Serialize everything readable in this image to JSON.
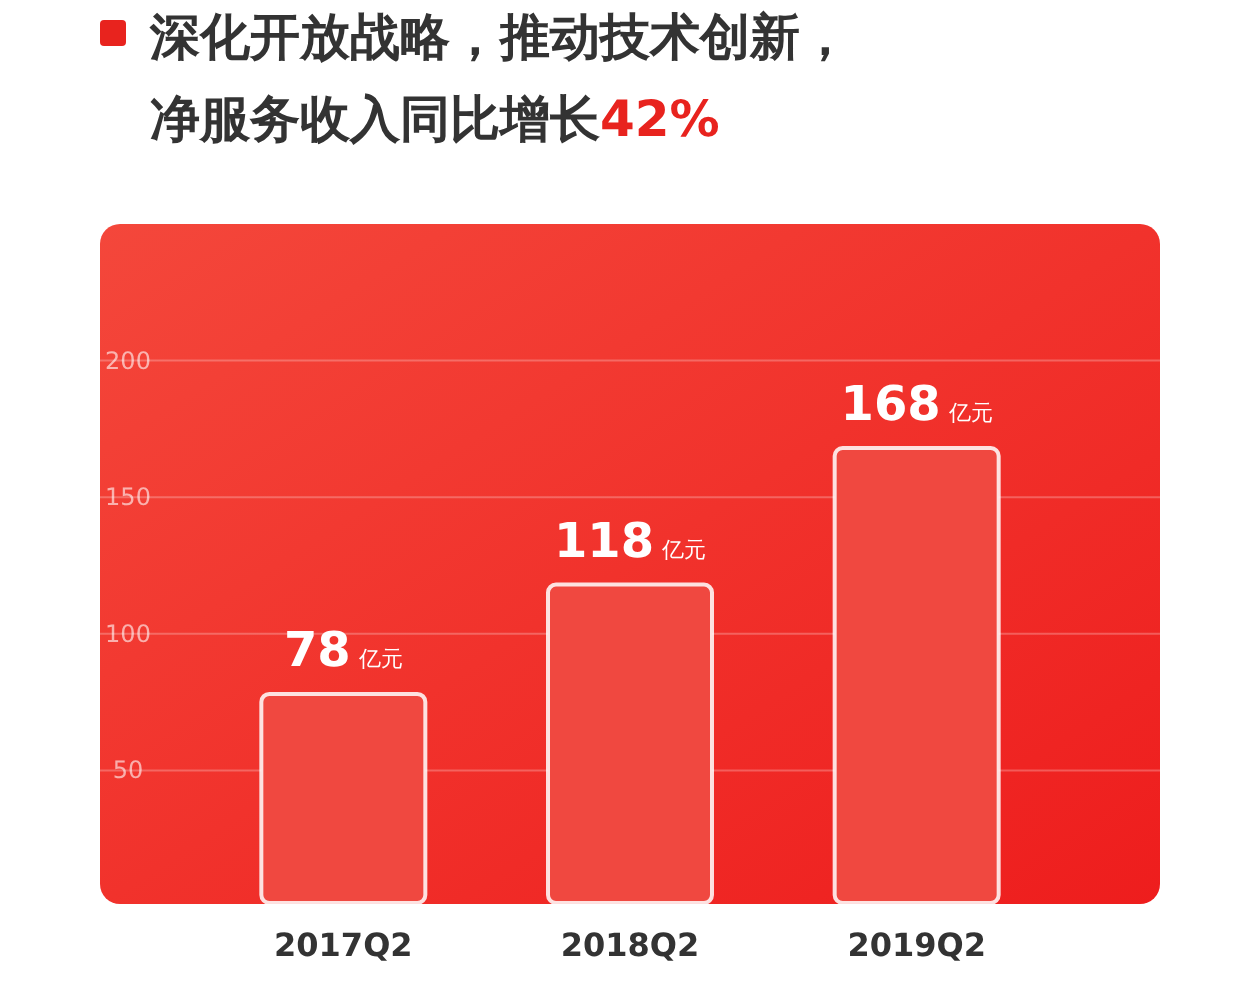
{
  "chart_data": {
    "type": "bar",
    "title": "深化开放战略，推动技术创新，",
    "subtitle": "净服务收入同比增长42%",
    "categories": [
      "2017Q2",
      "2018Q2",
      "2019Q2"
    ],
    "values": [
      78,
      118,
      168
    ],
    "value_labels": [
      "78 亿元",
      "118 亿元",
      "168 亿元"
    ],
    "color": "#f04840",
    "ylim": [
      0,
      250
    ],
    "yticks": [
      50,
      100,
      150,
      200
    ],
    "grid": "y"
  }
}
